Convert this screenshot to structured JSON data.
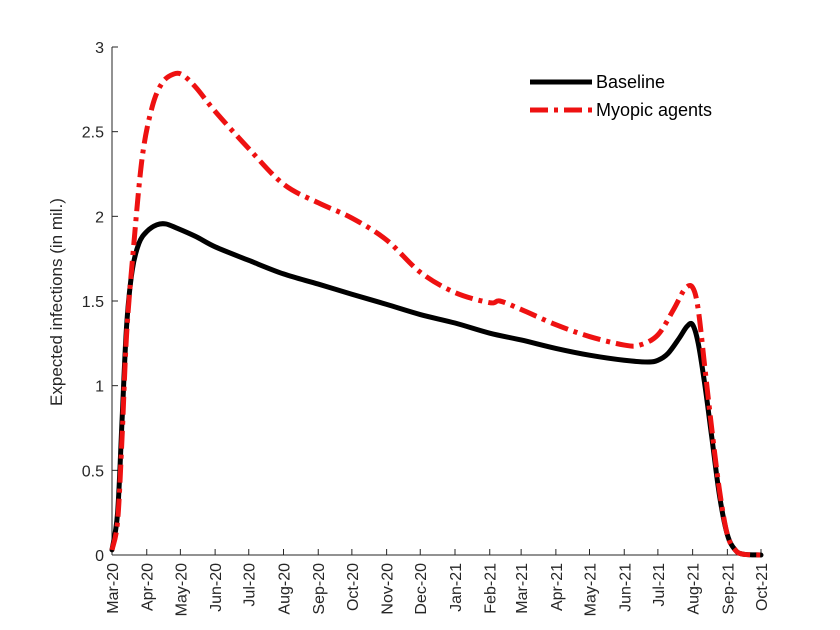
{
  "chart_data": {
    "type": "line",
    "title": "",
    "xlabel": "",
    "ylabel": "Expected infections (in mil.)",
    "x_ticks": [
      "Mar-20",
      "Apr-20",
      "May-20",
      "Jun-20",
      "Jul-20",
      "Aug-20",
      "Sep-20",
      "Oct-20",
      "Nov-20",
      "Dec-20",
      "Jan-21",
      "Feb-21",
      "Mar-21",
      "Apr-21",
      "May-21",
      "Jun-21",
      "Jul-21",
      "Aug-21",
      "Sep-21",
      "Oct-21"
    ],
    "y_ticks": [
      "0",
      "0.5",
      "1",
      "1.5",
      "2",
      "2.5",
      "3"
    ],
    "ylim": [
      0,
      3
    ],
    "xlim": [
      "2020-03-01",
      "2021-10-01"
    ],
    "grid": false,
    "legend_position": "top-right",
    "series": [
      {
        "name": "Baseline",
        "color": "#000000",
        "style": "solid",
        "points": [
          [
            "2020-03-01",
            0.03
          ],
          [
            "2020-03-06",
            0.25
          ],
          [
            "2020-03-10",
            0.8
          ],
          [
            "2020-03-14",
            1.35
          ],
          [
            "2020-03-19",
            1.68
          ],
          [
            "2020-03-25",
            1.84
          ],
          [
            "2020-04-01",
            1.91
          ],
          [
            "2020-04-10",
            1.95
          ],
          [
            "2020-04-18",
            1.955
          ],
          [
            "2020-04-28",
            1.93
          ],
          [
            "2020-05-15",
            1.88
          ],
          [
            "2020-06-01",
            1.82
          ],
          [
            "2020-07-01",
            1.74
          ],
          [
            "2020-08-01",
            1.66
          ],
          [
            "2020-09-01",
            1.6
          ],
          [
            "2020-10-01",
            1.54
          ],
          [
            "2020-11-01",
            1.48
          ],
          [
            "2020-12-01",
            1.42
          ],
          [
            "2021-01-01",
            1.37
          ],
          [
            "2021-02-01",
            1.31
          ],
          [
            "2021-03-01",
            1.27
          ],
          [
            "2021-04-01",
            1.22
          ],
          [
            "2021-05-01",
            1.18
          ],
          [
            "2021-06-01",
            1.15
          ],
          [
            "2021-06-22",
            1.14
          ],
          [
            "2021-07-01",
            1.15
          ],
          [
            "2021-07-10",
            1.19
          ],
          [
            "2021-07-20",
            1.28
          ],
          [
            "2021-07-27",
            1.35
          ],
          [
            "2021-08-01",
            1.36
          ],
          [
            "2021-08-06",
            1.25
          ],
          [
            "2021-08-12",
            1.0
          ],
          [
            "2021-08-18",
            0.7
          ],
          [
            "2021-08-25",
            0.35
          ],
          [
            "2021-09-01",
            0.12
          ],
          [
            "2021-09-08",
            0.03
          ],
          [
            "2021-09-15",
            0.005
          ],
          [
            "2021-10-01",
            0.0
          ]
        ]
      },
      {
        "name": "Myopic agents",
        "color": "#ee1111",
        "style": "dash-dot",
        "points": [
          [
            "2020-03-01",
            0.03
          ],
          [
            "2020-03-06",
            0.2
          ],
          [
            "2020-03-10",
            0.7
          ],
          [
            "2020-03-14",
            1.3
          ],
          [
            "2020-03-20",
            1.8
          ],
          [
            "2020-03-28",
            2.35
          ],
          [
            "2020-04-06",
            2.65
          ],
          [
            "2020-04-15",
            2.79
          ],
          [
            "2020-04-25",
            2.84
          ],
          [
            "2020-05-03",
            2.835
          ],
          [
            "2020-05-15",
            2.76
          ],
          [
            "2020-06-01",
            2.62
          ],
          [
            "2020-07-01",
            2.4
          ],
          [
            "2020-08-01",
            2.19
          ],
          [
            "2020-09-01",
            2.08
          ],
          [
            "2020-10-01",
            1.99
          ],
          [
            "2020-11-01",
            1.86
          ],
          [
            "2020-12-01",
            1.67
          ],
          [
            "2021-01-01",
            1.55
          ],
          [
            "2021-02-01",
            1.49
          ],
          [
            "2021-02-10",
            1.5
          ],
          [
            "2021-03-01",
            1.45
          ],
          [
            "2021-04-01",
            1.36
          ],
          [
            "2021-05-01",
            1.29
          ],
          [
            "2021-06-01",
            1.24
          ],
          [
            "2021-06-15",
            1.24
          ],
          [
            "2021-07-01",
            1.3
          ],
          [
            "2021-07-15",
            1.45
          ],
          [
            "2021-07-25",
            1.57
          ],
          [
            "2021-08-01",
            1.58
          ],
          [
            "2021-08-06",
            1.45
          ],
          [
            "2021-08-12",
            1.1
          ],
          [
            "2021-08-18",
            0.75
          ],
          [
            "2021-08-25",
            0.38
          ],
          [
            "2021-09-01",
            0.12
          ],
          [
            "2021-09-08",
            0.03
          ],
          [
            "2021-09-15",
            0.005
          ],
          [
            "2021-10-01",
            0.0
          ]
        ]
      }
    ]
  }
}
